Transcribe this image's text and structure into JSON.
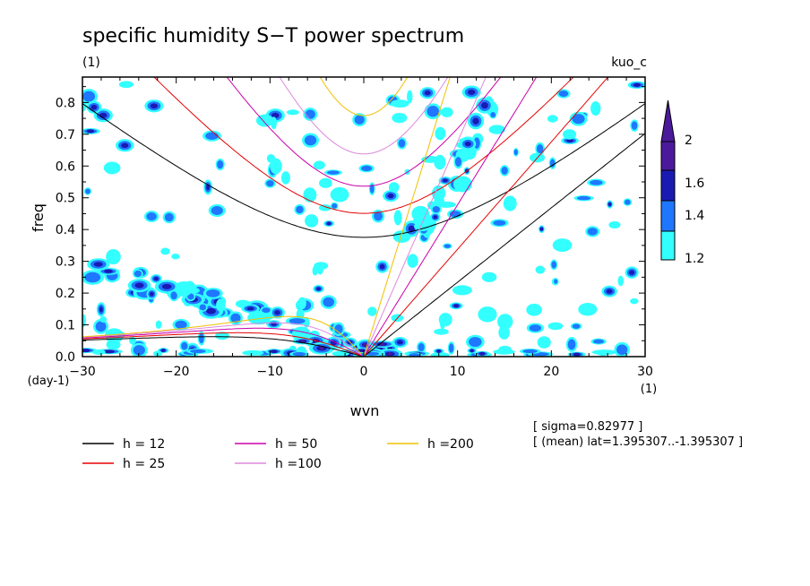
{
  "chart_data": {
    "type": "contour",
    "title": "specific humidity S−T power spectrum",
    "subtitle_left": "(1)",
    "subtitle_right": "kuo_c",
    "xlabel": "wvn",
    "ylabel": "freq",
    "x_unit": "(1)",
    "y_unit": "(day-1)",
    "xlim": [
      -30,
      30
    ],
    "ylim": [
      0,
      0.88
    ],
    "x_ticks": [
      -30,
      -20,
      -10,
      0,
      10,
      20,
      30
    ],
    "y_ticks": [
      0.0,
      0.1,
      0.2,
      0.3,
      0.4,
      0.5,
      0.6,
      0.7,
      0.8
    ],
    "colorbar": {
      "levels": [
        1.2,
        1.4,
        1.6,
        2
      ],
      "level_labels": [
        "1.2",
        "1.4",
        "1.6",
        "2"
      ],
      "colors": [
        "#33ffff",
        "#1f77ff",
        "#1a1ab3",
        "#4b1a9a"
      ]
    },
    "dispersion_curves": [
      {
        "name": "h = 12",
        "h": 12,
        "color": "#000000"
      },
      {
        "name": "h = 25",
        "h": 25,
        "color": "#e60000"
      },
      {
        "name": "h = 50",
        "h": 50,
        "color": "#cc00aa"
      },
      {
        "name": "h =100",
        "h": 100,
        "color": "#dd88dd"
      },
      {
        "name": "h =200",
        "h": 200,
        "color": "#f0c000"
      }
    ],
    "annotations": [
      "[ sigma=0.82977 ]",
      "[ (mean) lat=1.395307..-1.395307 ]"
    ]
  }
}
